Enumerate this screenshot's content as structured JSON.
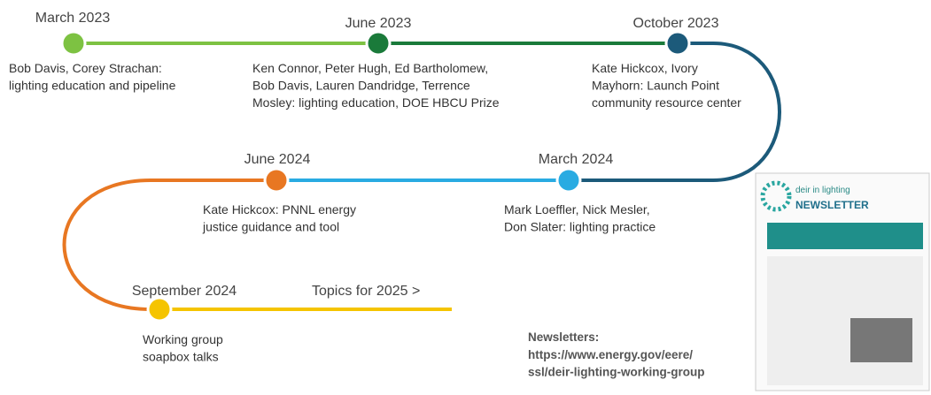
{
  "milestones": [
    {
      "date": "March 2023",
      "description": [
        "Bob Davis, Corey Strachan:",
        "lighting education and pipeline"
      ]
    },
    {
      "date": "June 2023",
      "description": [
        "Ken Connor, Peter Hugh, Ed Bartholomew,",
        "Bob Davis, Lauren Dandridge, Terrence",
        "Mosley: lighting education, DOE HBCU Prize"
      ]
    },
    {
      "date": "October 2023",
      "description": [
        "Kate Hickcox, Ivory",
        "Mayhorn: Launch Point",
        "community resource center"
      ]
    },
    {
      "date": "March 2024",
      "description": [
        "Mark Loeffler, Nick Mesler,",
        "Don Slater: lighting practice"
      ]
    },
    {
      "date": "June 2024",
      "description": [
        "Kate Hickcox: PNNL energy",
        "justice guidance and tool"
      ]
    },
    {
      "date": "September 2024",
      "description": [
        "Working group",
        "soapbox talks"
      ]
    }
  ],
  "next": "Topics for 2025 >",
  "newsletters": {
    "label": "Newsletters:",
    "url": [
      "https://www.energy.gov/eere/",
      "ssl/deir-lighting-working-group"
    ]
  },
  "thumbnail": {
    "brand": "deir in lighting",
    "title": "NEWSLETTER"
  }
}
